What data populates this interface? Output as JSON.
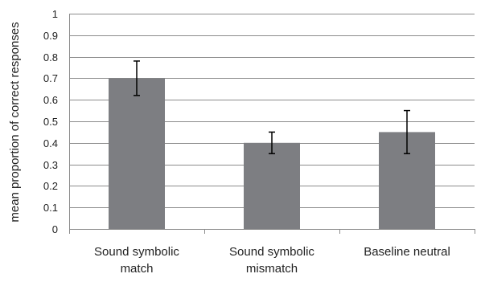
{
  "chart_data": {
    "type": "bar",
    "title": "",
    "xlabel": "",
    "ylabel": "mean proportion of correct responses",
    "ylim": [
      0,
      1
    ],
    "yticks": [
      0,
      0.1,
      0.2,
      0.3,
      0.4,
      0.5,
      0.6,
      0.7,
      0.8,
      0.9,
      1
    ],
    "ytick_labels": [
      "0",
      "0.1",
      "0.2",
      "0.3",
      "0.4",
      "0.5",
      "0.6",
      "0.7",
      "0.8",
      "0.9",
      "1"
    ],
    "grid": true,
    "categories": [
      [
        "Sound symbolic",
        "match"
      ],
      [
        "Sound symbolic",
        "mismatch"
      ],
      [
        "Baseline neutral"
      ]
    ],
    "values": [
      0.7,
      0.4,
      0.45
    ],
    "error_low": [
      0.62,
      0.35,
      0.35
    ],
    "error_high": [
      0.78,
      0.45,
      0.55
    ],
    "colors": {
      "bar": "#7d7e82",
      "grid": "#8c8c8c",
      "axis": "#8c8c8c",
      "error_bar": "#000000"
    }
  }
}
